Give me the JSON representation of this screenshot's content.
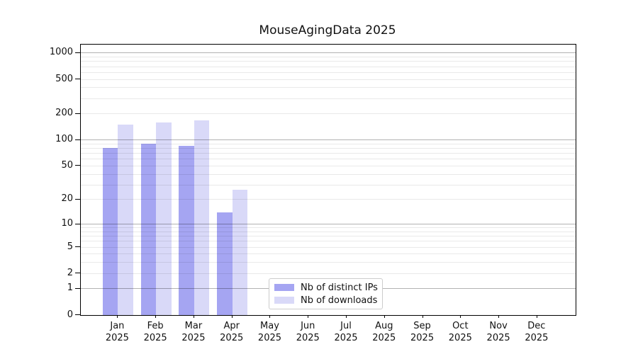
{
  "chart_data": {
    "type": "bar",
    "title": "MouseAgingData 2025",
    "categories": [
      "Jan",
      "Feb",
      "Mar",
      "Apr",
      "May",
      "Jun",
      "Jul",
      "Aug",
      "Sep",
      "Oct",
      "Nov",
      "Dec"
    ],
    "year_label": "2025",
    "series": [
      {
        "name": "Nb of distinct IPs",
        "color": "#a5a5f2",
        "values": [
          81,
          90,
          85,
          14,
          0,
          0,
          0,
          0,
          0,
          0,
          0,
          0
        ]
      },
      {
        "name": "Nb of downloads",
        "color": "#d9d9f8",
        "values": [
          150,
          160,
          168,
          26,
          0,
          0,
          0,
          0,
          0,
          0,
          0,
          0
        ]
      }
    ],
    "yscale": "log10(1+v)",
    "ylim": [
      0,
      1250
    ],
    "yticks": [
      0,
      1,
      2,
      5,
      10,
      20,
      50,
      100,
      200,
      500,
      1000
    ],
    "minor_gridlines": [
      2,
      3,
      4,
      5,
      6,
      7,
      8,
      9,
      20,
      30,
      40,
      50,
      60,
      70,
      80,
      90,
      200,
      300,
      400,
      500,
      600,
      700,
      800,
      900
    ],
    "major_gridlines": [
      1,
      10,
      100,
      1000
    ],
    "grid": true,
    "legend_position": "lower-center"
  },
  "colors": {
    "background": "#ffffff",
    "axis": "#000000",
    "major_grid_rgba": "rgba(0,0,0,0.30)",
    "minor_grid_rgba": "rgba(0,0,0,0.085)",
    "legend_border": "#cccccc"
  }
}
